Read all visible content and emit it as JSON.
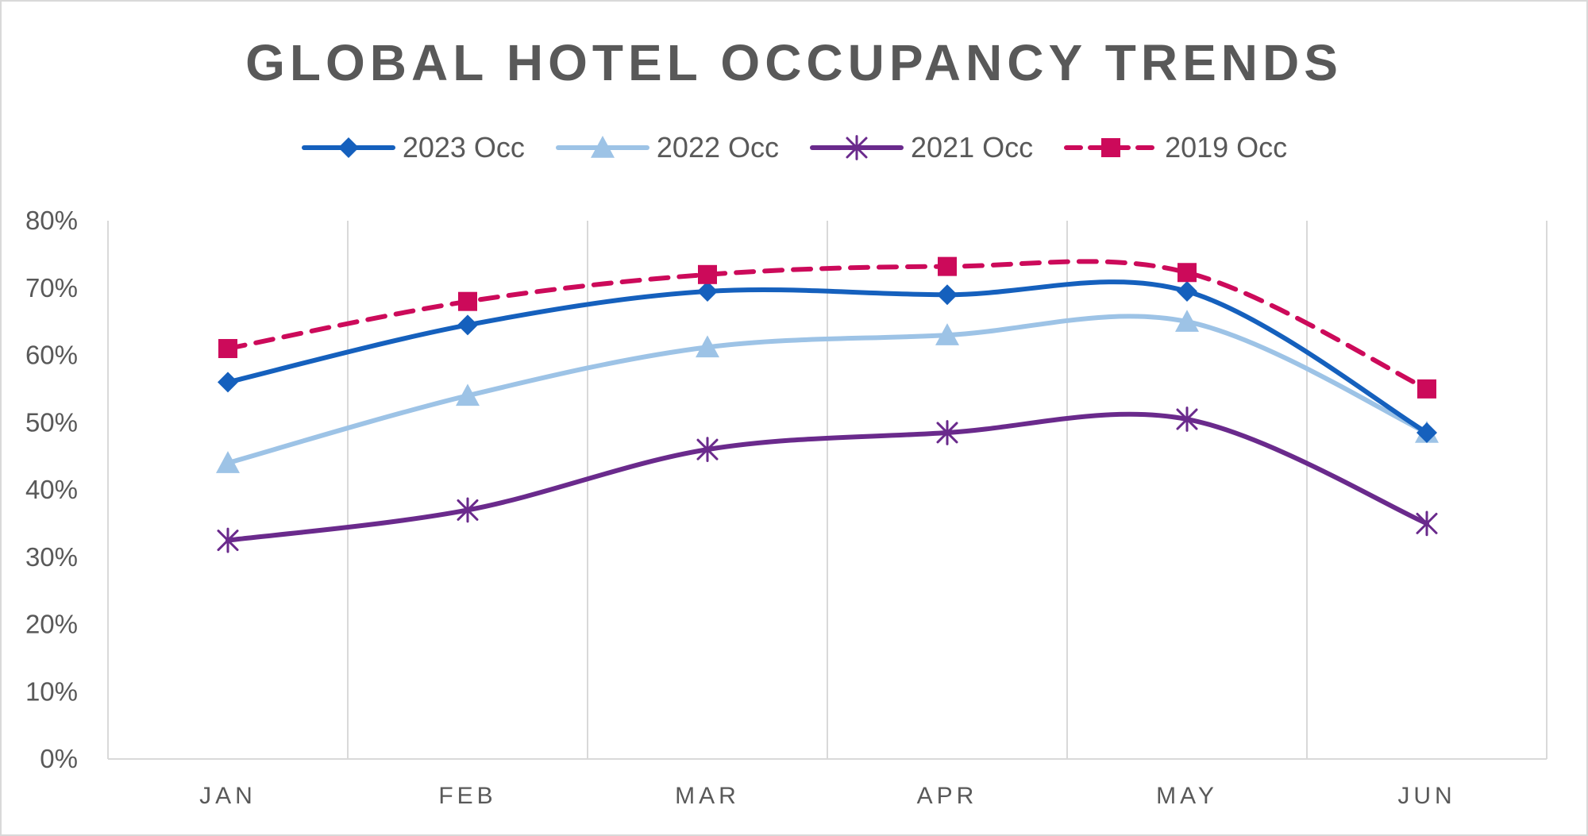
{
  "chart_data": {
    "type": "line",
    "title": "GLOBAL HOTEL OCCUPANCY TRENDS",
    "xlabel": "",
    "ylabel": "",
    "categories": [
      "JAN",
      "FEB",
      "MAR",
      "APR",
      "MAY",
      "JUN"
    ],
    "y_ticks": [
      "0%",
      "10%",
      "20%",
      "30%",
      "40%",
      "50%",
      "60%",
      "70%",
      "80%"
    ],
    "ylim": [
      0,
      80
    ],
    "grid": "vertical",
    "legend_position": "top",
    "series": [
      {
        "name": "2023 Occ",
        "values": [
          56,
          64.5,
          69.5,
          69,
          69.5,
          48.5
        ],
        "color": "#1560bd",
        "marker": "diamond",
        "dashed": false
      },
      {
        "name": "2022 Occ",
        "values": [
          44,
          54,
          61.2,
          63,
          65,
          48.5
        ],
        "color": "#9dc3e6",
        "marker": "triangle",
        "dashed": false
      },
      {
        "name": "2021 Occ",
        "values": [
          32.5,
          37,
          46,
          48.5,
          50.5,
          35
        ],
        "color": "#6a2a8c",
        "marker": "star",
        "dashed": false
      },
      {
        "name": "2019 Occ",
        "values": [
          61,
          68,
          72,
          73.2,
          72.3,
          55
        ],
        "color": "#cc0a5a",
        "marker": "square",
        "dashed": true
      }
    ]
  }
}
